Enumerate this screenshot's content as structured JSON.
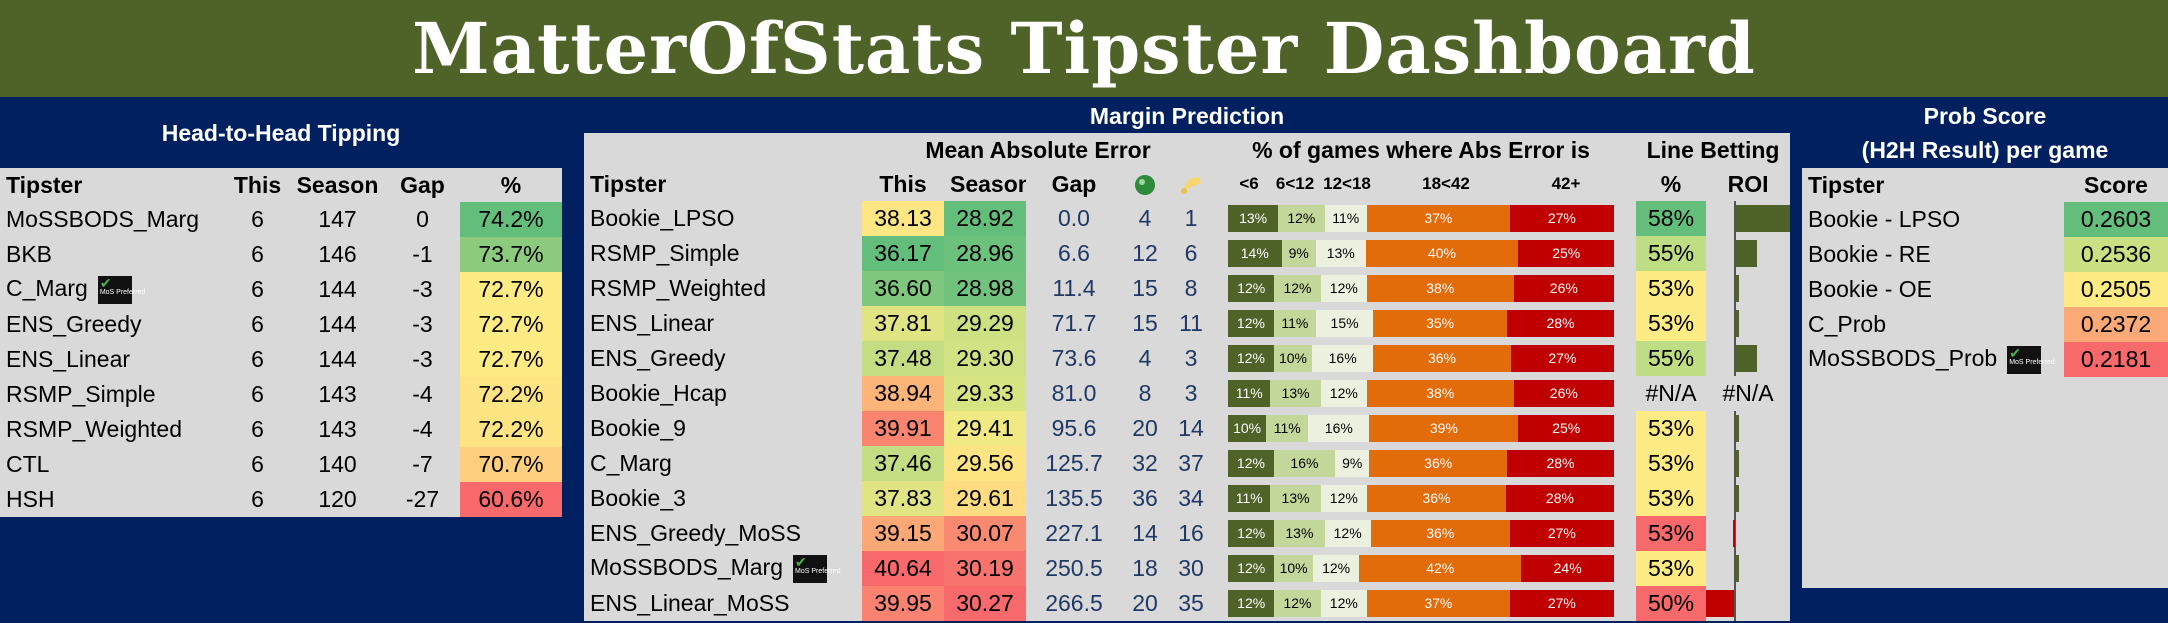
{
  "title": "MatterOfStats Tipster Dashboard",
  "h2h": {
    "heading": "Head-to-Head Tipping",
    "columns": [
      "Tipster",
      "This",
      "Season",
      "Gap",
      "%"
    ],
    "rows": [
      {
        "name": "MoSSBODS_Marg",
        "this": "6",
        "season": "147",
        "gap": "0",
        "pct": "74.2%",
        "color": "#63be7b"
      },
      {
        "name": "BKB",
        "this": "6",
        "season": "146",
        "gap": "-1",
        "pct": "73.7%",
        "color": "#8cca7e"
      },
      {
        "name": "C_Marg",
        "this": "6",
        "season": "144",
        "gap": "-3",
        "pct": "72.7%",
        "color": "#ffeb84",
        "badge": true
      },
      {
        "name": "ENS_Greedy",
        "this": "6",
        "season": "144",
        "gap": "-3",
        "pct": "72.7%",
        "color": "#ffeb84"
      },
      {
        "name": "ENS_Linear",
        "this": "6",
        "season": "144",
        "gap": "-3",
        "pct": "72.7%",
        "color": "#ffeb84"
      },
      {
        "name": "RSMP_Simple",
        "this": "6",
        "season": "143",
        "gap": "-4",
        "pct": "72.2%",
        "color": "#ffe483"
      },
      {
        "name": "RSMP_Weighted",
        "this": "6",
        "season": "143",
        "gap": "-4",
        "pct": "72.2%",
        "color": "#ffe483"
      },
      {
        "name": "CTL",
        "this": "6",
        "season": "140",
        "gap": "-7",
        "pct": "70.7%",
        "color": "#fdcf7e"
      },
      {
        "name": "HSH",
        "this": "6",
        "season": "120",
        "gap": "-27",
        "pct": "60.6%",
        "color": "#f8696b"
      }
    ]
  },
  "margin": {
    "heading": "Margin Prediction",
    "mae_heading": "Mean Absolute Error",
    "abs_heading": "% of games where Abs Error is",
    "line_heading": "Line Betting",
    "columns": {
      "tipster": "Tipster",
      "this": "This",
      "season": "Season",
      "gap": "Gap",
      "b1": "<6",
      "b2": "6<12",
      "b3": "12<18",
      "b4": "18<42",
      "b5": "42+",
      "pct": "%",
      "roi": "ROI"
    },
    "badge_text": "MoS Preferred",
    "rows": [
      {
        "name": "Bookie_LPSO",
        "this": "38.13",
        "tc": "#fee683",
        "season": "28.92",
        "sc": "#63be7b",
        "gap": "0.0",
        "ic1": "4",
        "ic2": "1",
        "b": [
          13,
          12,
          11,
          37,
          27
        ],
        "lb": "58%",
        "lc": "#63be7b",
        "roi": 0.9
      },
      {
        "name": "RSMP_Simple",
        "this": "36.17",
        "tc": "#63be7b",
        "season": "28.96",
        "sc": "#6cc17c",
        "gap": "6.6",
        "ic1": "12",
        "ic2": "6",
        "b": [
          14,
          9,
          13,
          40,
          25
        ],
        "lb": "55%",
        "lc": "#bfdd82",
        "roi": 0.35
      },
      {
        "name": "RSMP_Weighted",
        "this": "36.60",
        "tc": "#7fc77d",
        "season": "28.98",
        "sc": "#71c27c",
        "gap": "11.4",
        "ic1": "15",
        "ic2": "8",
        "b": [
          12,
          12,
          12,
          38,
          26
        ],
        "lb": "53%",
        "lc": "#ffeb84",
        "roi": 0.05
      },
      {
        "name": "ENS_Linear",
        "this": "37.81",
        "tc": "#e0e483",
        "season": "29.29",
        "sc": "#cde183",
        "gap": "71.7",
        "ic1": "15",
        "ic2": "11",
        "b": [
          12,
          11,
          15,
          35,
          28
        ],
        "lb": "53%",
        "lc": "#ffeb84",
        "roi": 0.05
      },
      {
        "name": "ENS_Greedy",
        "this": "37.48",
        "tc": "#c5dd82",
        "season": "29.30",
        "sc": "#d0e283",
        "gap": "73.6",
        "ic1": "4",
        "ic2": "3",
        "b": [
          12,
          10,
          16,
          36,
          27
        ],
        "lb": "55%",
        "lc": "#bfdd82",
        "roi": 0.35
      },
      {
        "name": "Bookie_Hcap",
        "this": "38.94",
        "tc": "#fcb479",
        "season": "29.33",
        "sc": "#d8e382",
        "gap": "81.0",
        "ic1": "8",
        "ic2": "3",
        "b": [
          11,
          13,
          12,
          38,
          26
        ],
        "lb": "#N/A",
        "lc": "#d9d9d9",
        "roi": null,
        "roi_text": "#N/A"
      },
      {
        "name": "Bookie_9",
        "this": "39.91",
        "tc": "#f98570",
        "season": "29.41",
        "sc": "#f0e984",
        "gap": "95.6",
        "ic1": "20",
        "ic2": "14",
        "b": [
          10,
          11,
          16,
          39,
          25
        ],
        "lb": "53%",
        "lc": "#ffeb84",
        "roi": 0.05
      },
      {
        "name": "C_Marg",
        "this": "37.46",
        "tc": "#c3dd82",
        "season": "29.56",
        "sc": "#ffe483",
        "gap": "125.7",
        "ic1": "32",
        "ic2": "37",
        "b": [
          12,
          16,
          9,
          36,
          28
        ],
        "lb": "53%",
        "lc": "#ffeb84",
        "roi": 0.05
      },
      {
        "name": "Bookie_3",
        "this": "37.83",
        "tc": "#e1e483",
        "season": "29.61",
        "sc": "#ffdc81",
        "gap": "135.5",
        "ic1": "36",
        "ic2": "34",
        "b": [
          11,
          13,
          12,
          36,
          28
        ],
        "lb": "53%",
        "lc": "#ffeb84",
        "roi": 0.05
      },
      {
        "name": "ENS_Greedy_MoSS",
        "this": "39.15",
        "tc": "#fca876",
        "season": "30.07",
        "sc": "#f98a71",
        "gap": "227.1",
        "ic1": "14",
        "ic2": "16",
        "b": [
          12,
          13,
          12,
          36,
          27
        ],
        "lb": "53%",
        "lc": "#f8696b",
        "roi": -0.02
      },
      {
        "name": "MoSSBODS_Marg",
        "this": "40.64",
        "tc": "#f8696b",
        "season": "30.19",
        "sc": "#f8736d",
        "gap": "250.5",
        "ic1": "18",
        "ic2": "30",
        "b": [
          12,
          10,
          12,
          42,
          24
        ],
        "lb": "53%",
        "lc": "#ffeb84",
        "roi": 0.05,
        "badge": true
      },
      {
        "name": "ENS_Linear_MoSS",
        "this": "39.95",
        "tc": "#f98370",
        "season": "30.27",
        "sc": "#f8696b",
        "gap": "266.5",
        "ic1": "20",
        "ic2": "35",
        "b": [
          12,
          12,
          12,
          37,
          27
        ],
        "lb": "50%",
        "lc": "#f8696b",
        "roi": -0.5
      }
    ]
  },
  "prob": {
    "heading1": "Prob Score",
    "heading2": "(H2H Result) per game",
    "columns": [
      "Tipster",
      "Score"
    ],
    "rows": [
      {
        "name": "Bookie - LPSO",
        "score": "0.2603",
        "color": "#63be7b"
      },
      {
        "name": "Bookie - RE",
        "score": "0.2536",
        "color": "#cbe082"
      },
      {
        "name": "Bookie - OE",
        "score": "0.2505",
        "color": "#ffeb84"
      },
      {
        "name": "C_Prob",
        "score": "0.2372",
        "color": "#fbaa77"
      },
      {
        "name": "MoSSBODS_Prob",
        "score": "0.2181",
        "color": "#f8696b",
        "badge": true
      }
    ]
  },
  "colors": {
    "banner": "#4f6228",
    "navy": "#002060",
    "panel": "#d9d9d9"
  }
}
